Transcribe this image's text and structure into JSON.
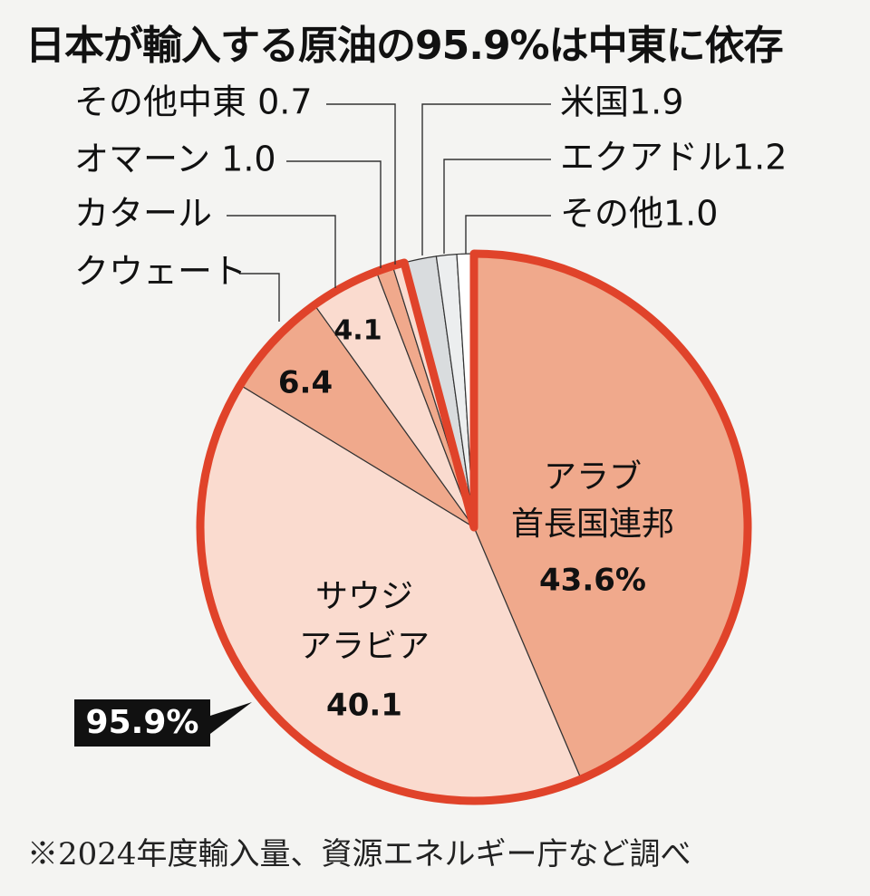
{
  "title": "日本が輸入する原油の95.9%は中東に依存",
  "note": "※2024年度輸入量、資源エネルギー庁など調べ",
  "chart_data": {
    "type": "pie",
    "title": "日本が輸入する原油の95.9%は中東に依存",
    "unit": "%",
    "slices": [
      {
        "label": "アラブ首長国連邦",
        "value": 43.6,
        "display_lines": [
          "アラブ",
          "首長国連邦",
          "43.6%"
        ],
        "color": "#f0a98c"
      },
      {
        "label": "サウジアラビア",
        "value": 40.1,
        "display_lines": [
          "サウジ",
          "アラビア",
          "40.1"
        ],
        "color": "#fadbcf"
      },
      {
        "label": "クウェート",
        "value": 6.4,
        "display_lines": [
          "6.4"
        ],
        "callout": "クウェート",
        "color": "#f0a98c"
      },
      {
        "label": "カタール",
        "value": 4.1,
        "display_lines": [
          "4.1"
        ],
        "callout": "カタール",
        "color": "#fadbcf"
      },
      {
        "label": "オマーン",
        "value": 1.0,
        "callout": "オマーン 1.0",
        "color": "#f0a98c"
      },
      {
        "label": "その他中東",
        "value": 0.7,
        "callout": "その他中東 0.7",
        "color": "#fadbcf"
      },
      {
        "label": "米国",
        "value": 1.9,
        "callout": "米国1.9",
        "color": "#d9dcde"
      },
      {
        "label": "エクアドル",
        "value": 1.2,
        "callout": "エクアドル1.2",
        "color": "#eceeef"
      },
      {
        "label": "その他",
        "value": 1.0,
        "callout": "その他1.0",
        "color": "#ffffff"
      }
    ],
    "highlight": {
      "label": "95.9%",
      "group": [
        "アラブ首長国連邦",
        "サウジアラビア",
        "クウェート",
        "カタール",
        "オマーン",
        "その他中東"
      ],
      "outline_color": "#e0432a"
    }
  }
}
